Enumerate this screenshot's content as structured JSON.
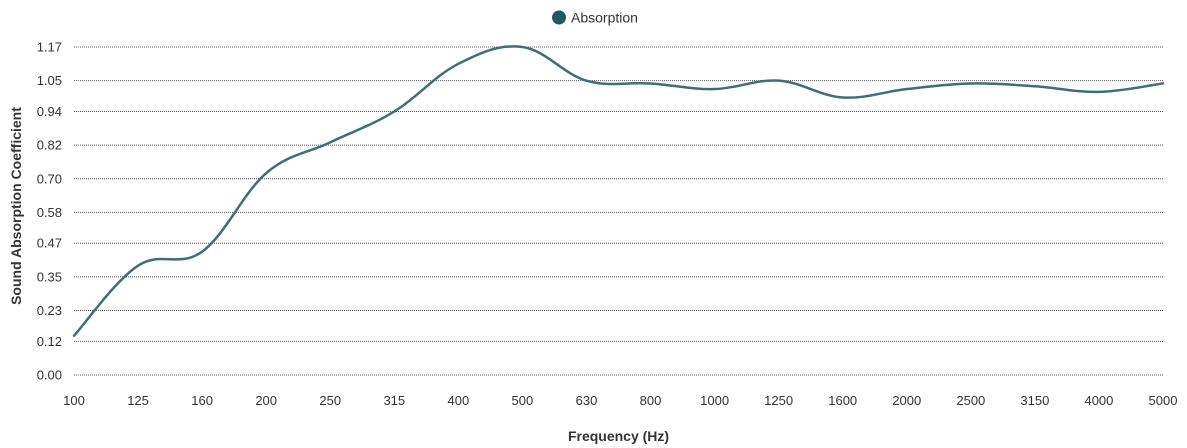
{
  "chart_data": {
    "type": "line",
    "title": "",
    "xlabel": "Frequency (Hz)",
    "ylabel": "Sound Absorption Coefficient",
    "categories": [
      "100",
      "125",
      "160",
      "200",
      "250",
      "315",
      "400",
      "500",
      "630",
      "800",
      "1000",
      "1250",
      "1600",
      "2000",
      "2500",
      "3150",
      "4000",
      "5000"
    ],
    "y_ticks": [
      "0.00",
      "0.12",
      "0.23",
      "0.35",
      "0.47",
      "0.58",
      "0.70",
      "0.82",
      "0.94",
      "1.05",
      "1.17"
    ],
    "ylim": [
      0,
      1.17
    ],
    "grid": true,
    "legend_position": "top-center",
    "series": [
      {
        "name": "Absorption",
        "color": "#3f6e75",
        "values": [
          0.14,
          0.39,
          0.44,
          0.72,
          0.83,
          0.94,
          1.11,
          1.17,
          1.05,
          1.04,
          1.02,
          1.05,
          0.99,
          1.02,
          1.04,
          1.03,
          1.01,
          1.04
        ]
      }
    ]
  }
}
